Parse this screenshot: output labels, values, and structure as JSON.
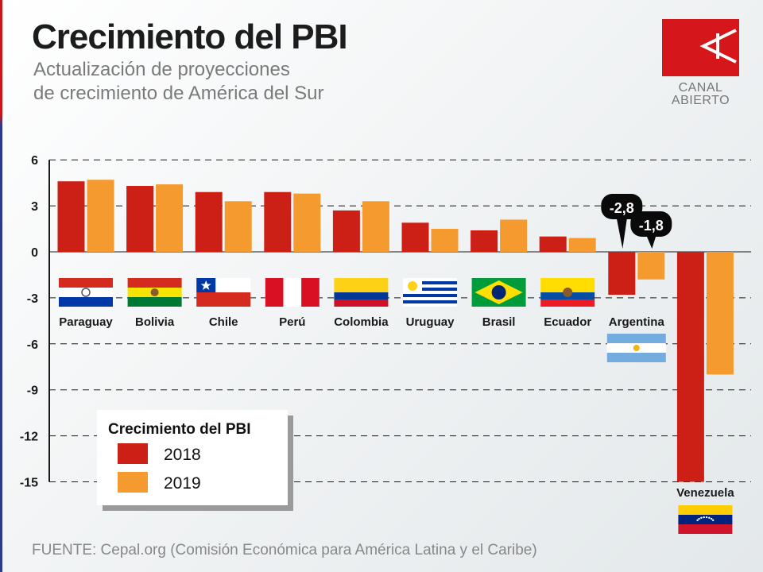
{
  "header": {
    "title": "Crecimiento del PBI",
    "subtitle_line1": "Actualización de proyecciones",
    "subtitle_line2": "de crecimiento de América del Sur"
  },
  "logo": {
    "line1": "CANAL",
    "line2": "ABIERTO",
    "color": "#d5161b"
  },
  "legend": {
    "title": "Crecimiento del PBI",
    "items": [
      {
        "label": "2018",
        "color": "#cc1f16"
      },
      {
        "label": "2019",
        "color": "#f59a2e"
      }
    ]
  },
  "source": "FUENTE: Cepal.org (Comisión Económica para América Latina y el Caribe)",
  "chart_data": {
    "type": "bar",
    "categories": [
      "Paraguay",
      "Bolivia",
      "Chile",
      "Perú",
      "Colombia",
      "Uruguay",
      "Brasil",
      "Ecuador",
      "Argentina",
      "Venezuela"
    ],
    "series": [
      {
        "name": "2018",
        "color": "#cc1f16",
        "values": [
          4.6,
          4.3,
          3.9,
          3.9,
          2.7,
          1.9,
          1.4,
          1.0,
          -2.8,
          -15.0
        ]
      },
      {
        "name": "2019",
        "color": "#f59a2e",
        "values": [
          4.7,
          4.4,
          3.3,
          3.8,
          3.3,
          1.5,
          2.1,
          0.9,
          -1.8,
          -8.0
        ]
      }
    ],
    "ylim": [
      -15,
      6
    ],
    "yticks": [
      6,
      3,
      0,
      -3,
      -6,
      -9,
      -12,
      -15
    ],
    "ytick_labels": [
      "6",
      "3",
      "0",
      "-3",
      "-6",
      "-9",
      "-12",
      "-15"
    ],
    "grid": "dashed horizontal",
    "annotations": [
      {
        "text": "-2,8",
        "category": "Argentina",
        "series": "2018"
      },
      {
        "text": "-1,8",
        "category": "Argentina",
        "series": "2019"
      }
    ],
    "flags": {
      "Paraguay": "paraguay-flag",
      "Bolivia": "bolivia-flag",
      "Chile": "chile-flag",
      "Perú": "peru-flag",
      "Colombia": "colombia-flag",
      "Uruguay": "uruguay-flag",
      "Brasil": "brasil-flag",
      "Ecuador": "ecuador-flag",
      "Argentina": "argentina-flag",
      "Venezuela": "venezuela-flag"
    }
  }
}
